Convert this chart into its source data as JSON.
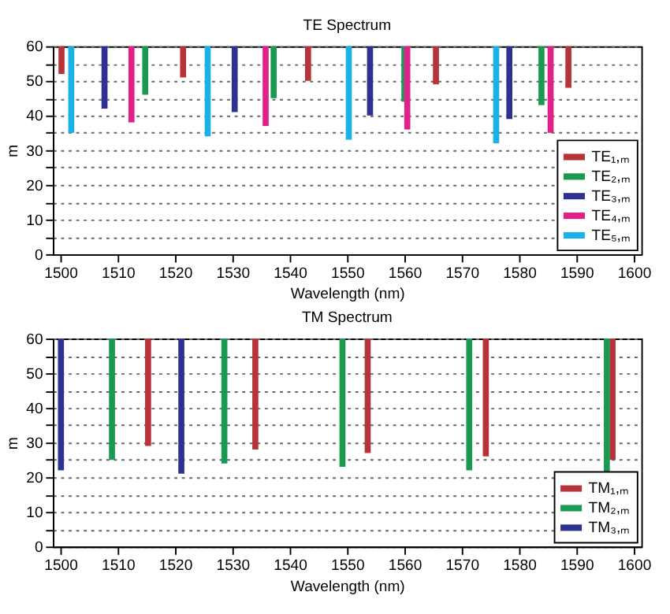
{
  "chart_data": [
    {
      "type": "bar",
      "title": "TE Spectrum",
      "xlabel": "Wavelength (nm)",
      "ylabel": "m",
      "xlim": [
        1500,
        1600
      ],
      "xticks": [
        1500,
        1510,
        1520,
        1530,
        1540,
        1550,
        1560,
        1570,
        1580,
        1590,
        1600
      ],
      "ylim": [
        0,
        60
      ],
      "yticks": [
        0,
        {
          "value": 5,
          "label": null
        },
        10,
        {
          "value": 15,
          "label": null
        },
        20,
        {
          "value": 25,
          "label": null
        },
        30,
        {
          "value": 35,
          "label": null
        },
        40,
        {
          "value": 45,
          "label": null
        },
        50,
        {
          "value": 55,
          "label": null
        },
        60
      ],
      "grid": "y",
      "legend": "bottom right",
      "series": [
        {
          "name": "TE₁,ₘ",
          "color": "#b5343a",
          "x": [
            1500.2,
            1521.4,
            1543.2,
            1565.5,
            1588.6
          ],
          "base": [
            60,
            60,
            60,
            60,
            60
          ],
          "values": [
            -8,
            -9,
            -10,
            -11,
            -12
          ]
        },
        {
          "name": "TE₂,ₘ",
          "color": "#1a9a50",
          "x": [
            1514.8,
            1537.2,
            1560.0,
            1583.9
          ],
          "base": [
            60,
            60,
            60,
            60
          ],
          "values": [
            -14,
            -15,
            -16,
            -17
          ]
        },
        {
          "name": "TE₃,ₘ",
          "color": "#2e3192",
          "x": [
            1507.7,
            1530.4,
            1554.0,
            1578.3
          ],
          "base": [
            60,
            60,
            60,
            60
          ],
          "values": [
            -18,
            -19,
            -20,
            -21
          ]
        },
        {
          "name": "TE₄,ₘ",
          "color": "#e0218a",
          "x": [
            1512.4,
            1535.8,
            1560.5,
            1585.5
          ],
          "base": [
            60,
            60,
            60,
            60
          ],
          "values": [
            -22,
            -23,
            -24,
            -25
          ]
        },
        {
          "name": "TE₅,ₘ",
          "color": "#1ab0e8",
          "x": [
            1501.9,
            1525.7,
            1550.3,
            1576.0
          ],
          "base": [
            60,
            60,
            60,
            60
          ],
          "values": [
            -25,
            -26,
            -27,
            -28
          ]
        }
      ]
    },
    {
      "type": "bar",
      "title": "TM Spectrum",
      "xlabel": "Wavelength (nm)",
      "ylabel": "m",
      "xlim": [
        1500,
        1600
      ],
      "xticks": [
        1500,
        1510,
        1520,
        1530,
        1540,
        1550,
        1560,
        1570,
        1580,
        1590,
        1600
      ],
      "ylim": [
        0,
        60
      ],
      "yticks": [
        0,
        {
          "value": 5,
          "label": null
        },
        10,
        {
          "value": 15,
          "label": null
        },
        20,
        {
          "value": 25,
          "label": null
        },
        30,
        {
          "value": 35,
          "label": null
        },
        40,
        {
          "value": 45,
          "label": null
        },
        50,
        {
          "value": 55,
          "label": null
        },
        60
      ],
      "grid": "y",
      "legend": "bottom right",
      "series": [
        {
          "name": "TM₁,ₘ",
          "color": "#b5343a",
          "x": [
            1515.3,
            1534.0,
            1553.6,
            1574.2,
            1596.3
          ],
          "base": [
            60,
            60,
            60,
            60,
            60
          ],
          "values": [
            -31,
            -32,
            -33,
            -34,
            -35
          ]
        },
        {
          "name": "TM₂,ₘ",
          "color": "#1a9a50",
          "x": [
            1509.0,
            1528.6,
            1549.2,
            1571.3,
            1595.3
          ],
          "base": [
            60,
            60,
            60,
            60,
            60
          ],
          "values": [
            -35,
            -36,
            -37,
            -38,
            -39
          ]
        },
        {
          "name": "TM₃,ₘ",
          "color": "#2e3192",
          "x": [
            1500.1,
            1521.1
          ],
          "base": [
            60,
            60
          ],
          "values": [
            -38,
            -39
          ]
        }
      ]
    }
  ]
}
